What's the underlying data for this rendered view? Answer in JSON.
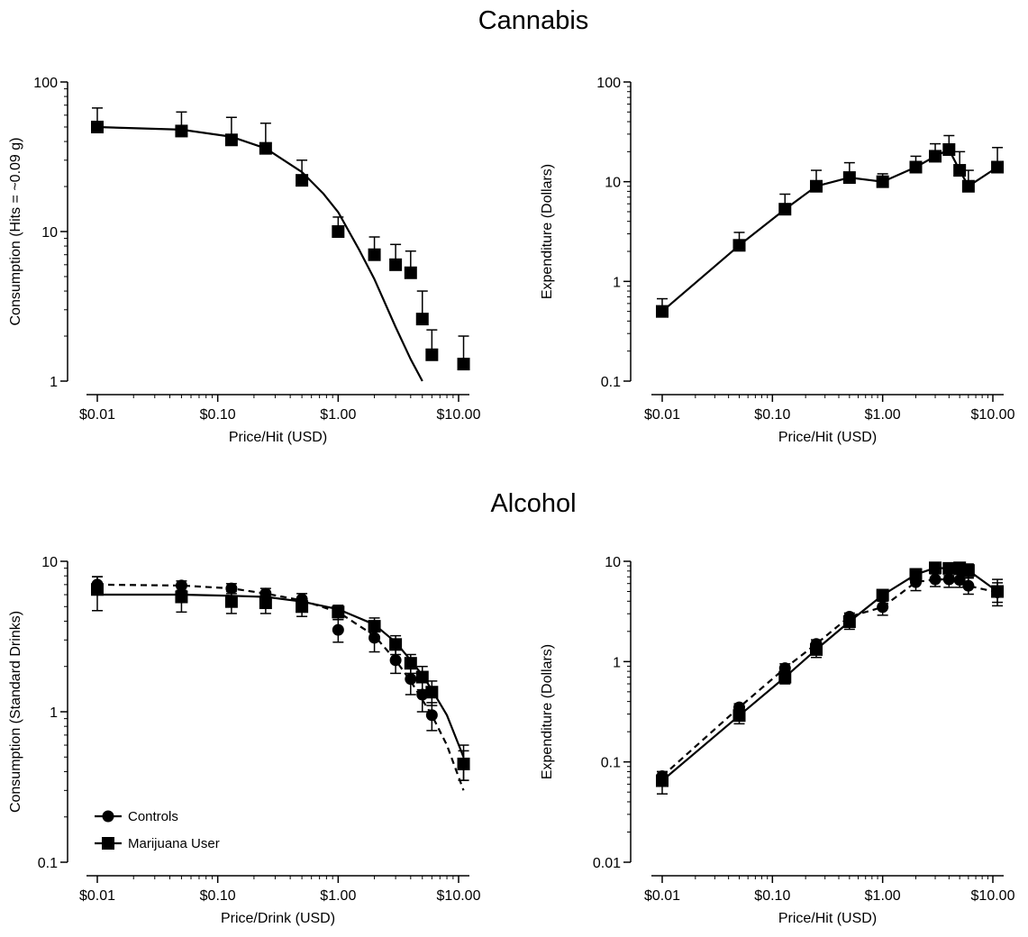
{
  "sections": {
    "cannabis_title": "Cannabis",
    "alcohol_title": "Alcohol"
  },
  "colors": {
    "ink": "#000000",
    "background": "#ffffff"
  },
  "chart_data": [
    {
      "id": "cannabis-consumption",
      "type": "scatter",
      "xlabel": "Price/Hit (USD)",
      "ylabel": "Consumption (Hits = ~0.09 g)",
      "x_scale": "log",
      "y_scale": "log",
      "xlim": [
        0.01,
        11
      ],
      "ylim": [
        1,
        100
      ],
      "x_ticks": [
        0.01,
        0.1,
        1,
        10
      ],
      "x_tick_labels": [
        "$0.01",
        "$0.10",
        "$1.00",
        "$10.00"
      ],
      "y_ticks": [
        1,
        10,
        100
      ],
      "y_tick_labels": [
        "1",
        "10",
        "100"
      ],
      "series": [
        {
          "marker": "square",
          "x": [
            0.01,
            0.05,
            0.13,
            0.25,
            0.5,
            1,
            2,
            3,
            4,
            5,
            6,
            11
          ],
          "y": [
            50,
            47,
            41,
            36,
            22,
            10,
            7,
            6,
            5.3,
            2.6,
            1.5,
            1.3
          ],
          "error_upper": [
            67,
            63,
            58,
            53,
            30,
            12.5,
            9.2,
            8.2,
            7.4,
            4,
            2.2,
            2
          ]
        }
      ],
      "fits": [
        {
          "style": "solid",
          "x": [
            0.01,
            0.05,
            0.13,
            0.25,
            0.5,
            0.75,
            1,
            1.5,
            2,
            3,
            4,
            5
          ],
          "y": [
            50,
            48,
            43,
            36,
            25,
            18,
            13.5,
            7.5,
            4.8,
            2.3,
            1.4,
            1.0
          ]
        }
      ]
    },
    {
      "id": "cannabis-expenditure",
      "type": "line",
      "xlabel": "Price/Hit (USD)",
      "ylabel": "Expenditure (Dollars)",
      "x_scale": "log",
      "y_scale": "log",
      "xlim": [
        0.01,
        11
      ],
      "ylim": [
        0.1,
        100
      ],
      "x_ticks": [
        0.01,
        0.1,
        1,
        10
      ],
      "x_tick_labels": [
        "$0.01",
        "$0.10",
        "$1.00",
        "$10.00"
      ],
      "y_ticks": [
        0.1,
        1,
        10,
        100
      ],
      "y_tick_labels": [
        "0.1",
        "1",
        "10",
        "100"
      ],
      "series": [
        {
          "marker": "square",
          "line": "solid",
          "x": [
            0.01,
            0.05,
            0.13,
            0.25,
            0.5,
            1,
            2,
            3,
            4,
            5,
            6,
            11
          ],
          "y": [
            0.5,
            2.3,
            5.3,
            9,
            11,
            10,
            14,
            18,
            21,
            13,
            9,
            14
          ],
          "error_upper": [
            0.67,
            3.1,
            7.5,
            13,
            15.5,
            12,
            18,
            24,
            29,
            20,
            13,
            22
          ]
        }
      ]
    },
    {
      "id": "alcohol-consumption",
      "type": "scatter",
      "xlabel": "Price/Drink (USD)",
      "ylabel": "Consumption (Standard Drinks)",
      "x_scale": "log",
      "y_scale": "log",
      "xlim": [
        0.01,
        11
      ],
      "ylim": [
        0.1,
        10
      ],
      "x_ticks": [
        0.01,
        0.1,
        1,
        10
      ],
      "x_tick_labels": [
        "$0.01",
        "$0.10",
        "$1.00",
        "$10.00"
      ],
      "y_ticks": [
        0.1,
        1,
        10
      ],
      "y_tick_labels": [
        "0.1",
        "1",
        "10"
      ],
      "legend": {
        "position": "bottom-left",
        "entries": [
          "Controls",
          "Marijuana User"
        ]
      },
      "series": [
        {
          "name": "Controls",
          "marker": "circle",
          "x": [
            0.01,
            0.05,
            0.13,
            0.25,
            0.5,
            1,
            2,
            3,
            4,
            5,
            6,
            11
          ],
          "y": [
            7,
            6.9,
            6.6,
            6.1,
            5.6,
            3.5,
            3.1,
            2.2,
            1.65,
            1.3,
            0.95,
            0.45
          ],
          "error_upper": [
            7.9,
            7.4,
            7.1,
            6.6,
            6.1,
            4.1,
            3.7,
            2.6,
            2,
            1.6,
            1.15,
            0.55
          ],
          "error_lower": [
            6.1,
            6.4,
            6.1,
            5.6,
            5.1,
            2.9,
            2.5,
            1.8,
            1.3,
            1,
            0.75,
            0.35
          ]
        },
        {
          "name": "Marijuana User",
          "marker": "square",
          "x": [
            0.01,
            0.05,
            0.13,
            0.25,
            0.5,
            1,
            2,
            3,
            4,
            5,
            6,
            11
          ],
          "y": [
            6.5,
            5.8,
            5.4,
            5.3,
            5,
            4.6,
            3.7,
            2.8,
            2.1,
            1.7,
            1.35,
            0.45
          ],
          "error_upper": [
            7.9,
            6.9,
            6.3,
            6.1,
            5.7,
            5.1,
            4.2,
            3.2,
            2.4,
            2,
            1.6,
            0.6
          ],
          "error_lower": [
            4.7,
            4.6,
            4.5,
            4.5,
            4.3,
            4.1,
            3.2,
            2.4,
            1.8,
            1.4,
            1.1,
            0.35
          ]
        }
      ],
      "fits": [
        {
          "style": "dashed",
          "x": [
            0.01,
            0.05,
            0.13,
            0.25,
            0.5,
            1,
            2,
            3,
            4,
            5,
            6,
            8,
            11
          ],
          "y": [
            7,
            6.9,
            6.6,
            6.1,
            5.5,
            4.6,
            3.2,
            2.2,
            1.6,
            1.2,
            0.95,
            0.6,
            0.3
          ]
        },
        {
          "style": "solid",
          "x": [
            0.01,
            0.05,
            0.13,
            0.25,
            0.5,
            1,
            2,
            3,
            4,
            5,
            6,
            8,
            11
          ],
          "y": [
            6,
            6,
            5.9,
            5.8,
            5.4,
            4.8,
            3.8,
            2.9,
            2.2,
            1.75,
            1.4,
            0.95,
            0.5
          ]
        }
      ]
    },
    {
      "id": "alcohol-expenditure",
      "type": "line",
      "xlabel": "Price/Hit (USD)",
      "ylabel": "Expenditure (Dollars)",
      "x_scale": "log",
      "y_scale": "log",
      "xlim": [
        0.01,
        11
      ],
      "ylim": [
        0.01,
        10
      ],
      "x_ticks": [
        0.01,
        0.1,
        1,
        10
      ],
      "x_tick_labels": [
        "$0.01",
        "$0.10",
        "$1.00",
        "$10.00"
      ],
      "y_ticks": [
        0.01,
        0.1,
        1,
        10
      ],
      "y_tick_labels": [
        "0.01",
        "0.1",
        "1",
        "10"
      ],
      "series": [
        {
          "name": "Controls",
          "marker": "circle",
          "line": "dashed",
          "x": [
            0.01,
            0.05,
            0.13,
            0.25,
            0.5,
            1,
            2,
            3,
            4,
            5,
            6,
            11
          ],
          "y": [
            0.072,
            0.35,
            0.86,
            1.5,
            2.8,
            3.5,
            6.2,
            6.6,
            6.6,
            6.5,
            5.7,
            4.9
          ],
          "error_upper": [
            0.08,
            0.38,
            0.95,
            1.65,
            3.05,
            4.1,
            7.4,
            7.8,
            8,
            7.5,
            6.9,
            6.1
          ],
          "error_lower": [
            0.064,
            0.32,
            0.79,
            1.4,
            2.55,
            2.9,
            5.1,
            5.6,
            5.5,
            5.5,
            4.7,
            3.9
          ]
        },
        {
          "name": "Marijuana User",
          "marker": "square",
          "line": "solid",
          "x": [
            0.01,
            0.05,
            0.13,
            0.25,
            0.5,
            1,
            2,
            3,
            4,
            5,
            6,
            11
          ],
          "y": [
            0.065,
            0.29,
            0.7,
            1.32,
            2.5,
            4.6,
            7.4,
            8.6,
            8.5,
            8.6,
            8.1,
            5
          ],
          "error_upper": [
            0.08,
            0.35,
            0.82,
            1.55,
            2.85,
            5.2,
            8.4,
            9.6,
            9.6,
            9.7,
            9.4,
            6.6
          ],
          "error_lower": [
            0.048,
            0.24,
            0.6,
            1.1,
            2.1,
            4,
            6.2,
            7.5,
            7.2,
            7.4,
            6.8,
            3.6
          ]
        }
      ]
    }
  ]
}
